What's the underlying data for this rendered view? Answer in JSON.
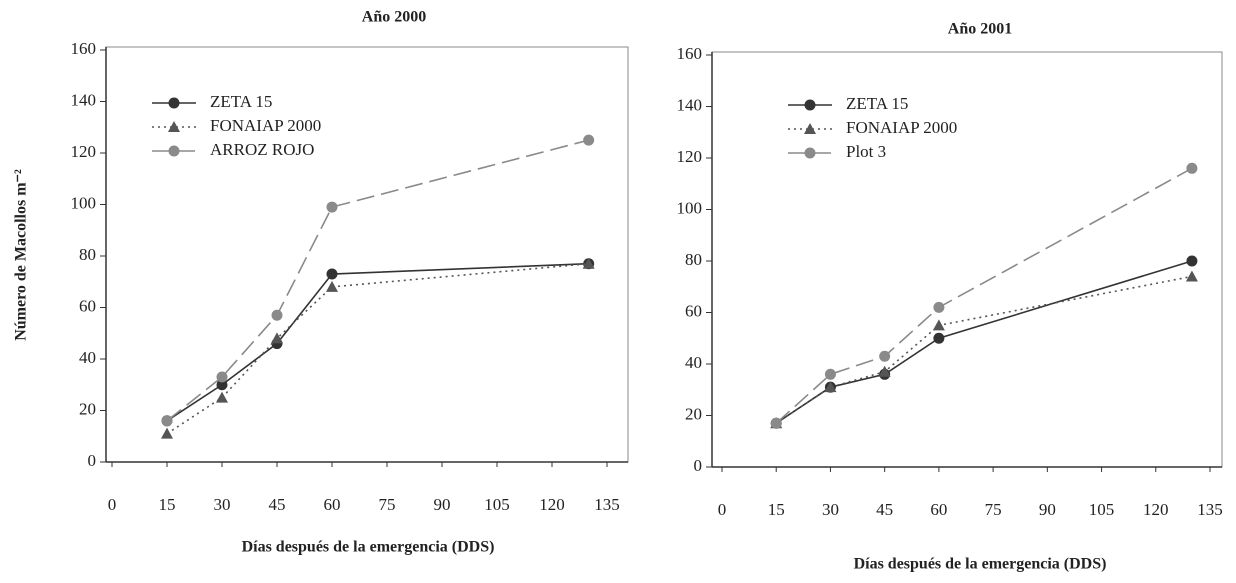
{
  "chart_data": [
    {
      "type": "line",
      "title": "Año 2000",
      "xlabel": "Días después de la emergencia (DDS)",
      "ylabel": "Número de Macollos m⁻²",
      "x": [
        15,
        30,
        45,
        60,
        130
      ],
      "series": [
        {
          "name": "ZETA 15",
          "color": "#333333",
          "dash": "solid",
          "marker": "circle",
          "values": [
            16,
            30,
            46,
            73,
            77
          ]
        },
        {
          "name": "FONAIAP 2000",
          "color": "#555555",
          "dash": "dotted",
          "marker": "triangle",
          "values": [
            11,
            25,
            48,
            68,
            77
          ]
        },
        {
          "name": "ARROZ ROJO",
          "color": "#8a8a8a",
          "dash": "dashed",
          "marker": "circle",
          "values": [
            16,
            33,
            57,
            99,
            125
          ]
        }
      ],
      "xlim": [
        0,
        135
      ],
      "xticks": [
        0,
        15,
        30,
        45,
        60,
        75,
        90,
        105,
        120,
        135
      ],
      "ylim": [
        0,
        160
      ],
      "yticks": [
        0,
        20,
        40,
        60,
        80,
        100,
        120,
        140,
        160
      ],
      "legend": "upper left"
    },
    {
      "type": "line",
      "title": "Año 2001",
      "xlabel": "Días después de la emergencia (DDS)",
      "x": [
        15,
        30,
        45,
        60,
        130
      ],
      "series": [
        {
          "name": "ZETA 15",
          "color": "#333333",
          "dash": "solid",
          "marker": "circle",
          "values": [
            17,
            31,
            36,
            50,
            80
          ]
        },
        {
          "name": "FONAIAP 2000",
          "color": "#555555",
          "dash": "dotted",
          "marker": "triangle",
          "values": [
            17,
            31,
            37,
            55,
            74
          ]
        },
        {
          "name": "Plot 3",
          "color": "#8a8a8a",
          "dash": "dashed",
          "marker": "circle",
          "values": [
            17,
            36,
            43,
            62,
            116
          ]
        }
      ],
      "xlim": [
        0,
        135
      ],
      "xticks": [
        0,
        15,
        30,
        45,
        60,
        75,
        90,
        105,
        120,
        135
      ],
      "ylim": [
        0,
        160
      ],
      "yticks": [
        0,
        20,
        40,
        60,
        80,
        100,
        120,
        140,
        160
      ],
      "legend": "upper left"
    }
  ]
}
